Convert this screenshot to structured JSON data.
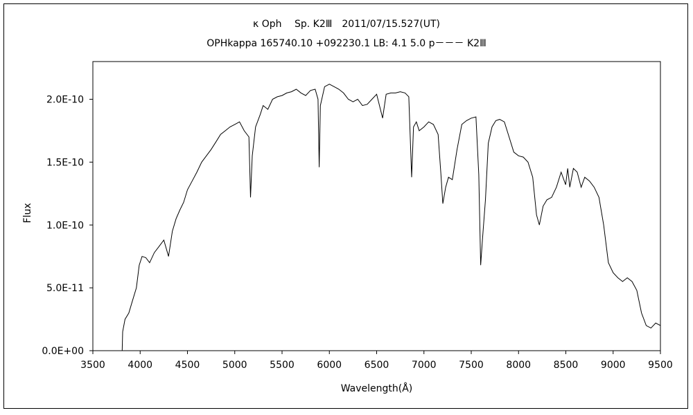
{
  "chart_data": {
    "type": "line",
    "title": "κ Oph　 Sp. K2Ⅲ　2011/07/15.527(UT)",
    "subtitle": "OPHkappa 165740.10 +092230.1 LB: 4.1 5.0 p－－－ K2Ⅲ",
    "xlabel": "Wavelength(Å)",
    "ylabel": "Flux",
    "xlim": [
      3500,
      9500
    ],
    "ylim": [
      0,
      2.3e-10
    ],
    "x_ticks": [
      3500,
      4000,
      4500,
      5000,
      5500,
      6000,
      6500,
      7000,
      7500,
      8000,
      8500,
      9000,
      9500
    ],
    "x_tick_labels": [
      "3500",
      "4000",
      "4500",
      "5000",
      "5500",
      "6000",
      "6500",
      "7000",
      "7500",
      "8000",
      "8500",
      "9000",
      "9500"
    ],
    "y_ticks": [
      0,
      5e-11,
      1e-10,
      1.5e-10,
      2e-10
    ],
    "y_tick_labels": [
      "0.0E+00",
      "5.0E-11",
      "1.0E-10",
      "1.5E-10",
      "2.0E-10"
    ],
    "grid": false,
    "legend": "none",
    "series": [
      {
        "line_color": "#000000",
        "points": [
          [
            3810,
            0.0
          ],
          [
            3815,
            1.5e-11
          ],
          [
            3840,
            2.5e-11
          ],
          [
            3880,
            3e-11
          ],
          [
            3920,
            4e-11
          ],
          [
            3960,
            5e-11
          ],
          [
            3990,
            6.8e-11
          ],
          [
            4020,
            7.5e-11
          ],
          [
            4060,
            7.4e-11
          ],
          [
            4100,
            7e-11
          ],
          [
            4150,
            7.8e-11
          ],
          [
            4200,
            8.3e-11
          ],
          [
            4250,
            8.8e-11
          ],
          [
            4300,
            7.5e-11
          ],
          [
            4340,
            9.5e-11
          ],
          [
            4380,
            1.05e-10
          ],
          [
            4420,
            1.12e-10
          ],
          [
            4460,
            1.18e-10
          ],
          [
            4500,
            1.28e-10
          ],
          [
            4550,
            1.35e-10
          ],
          [
            4600,
            1.42e-10
          ],
          [
            4650,
            1.5e-10
          ],
          [
            4700,
            1.55e-10
          ],
          [
            4750,
            1.6e-10
          ],
          [
            4800,
            1.66e-10
          ],
          [
            4850,
            1.72e-10
          ],
          [
            4900,
            1.75e-10
          ],
          [
            4950,
            1.78e-10
          ],
          [
            5000,
            1.8e-10
          ],
          [
            5050,
            1.82e-10
          ],
          [
            5100,
            1.75e-10
          ],
          [
            5150,
            1.7e-10
          ],
          [
            5167,
            1.22e-10
          ],
          [
            5185,
            1.55e-10
          ],
          [
            5220,
            1.78e-10
          ],
          [
            5270,
            1.88e-10
          ],
          [
            5300,
            1.95e-10
          ],
          [
            5350,
            1.92e-10
          ],
          [
            5400,
            2e-10
          ],
          [
            5450,
            2.02e-10
          ],
          [
            5500,
            2.03e-10
          ],
          [
            5550,
            2.05e-10
          ],
          [
            5600,
            2.06e-10
          ],
          [
            5650,
            2.08e-10
          ],
          [
            5700,
            2.05e-10
          ],
          [
            5750,
            2.03e-10
          ],
          [
            5800,
            2.07e-10
          ],
          [
            5850,
            2.08e-10
          ],
          [
            5880,
            2e-10
          ],
          [
            5893,
            1.46e-10
          ],
          [
            5905,
            1.95e-10
          ],
          [
            5950,
            2.1e-10
          ],
          [
            6000,
            2.12e-10
          ],
          [
            6050,
            2.1e-10
          ],
          [
            6100,
            2.08e-10
          ],
          [
            6150,
            2.05e-10
          ],
          [
            6200,
            2e-10
          ],
          [
            6250,
            1.98e-10
          ],
          [
            6300,
            2e-10
          ],
          [
            6350,
            1.95e-10
          ],
          [
            6400,
            1.96e-10
          ],
          [
            6450,
            2e-10
          ],
          [
            6500,
            2.04e-10
          ],
          [
            6563,
            1.85e-10
          ],
          [
            6600,
            2.04e-10
          ],
          [
            6650,
            2.05e-10
          ],
          [
            6700,
            2.05e-10
          ],
          [
            6750,
            2.06e-10
          ],
          [
            6800,
            2.05e-10
          ],
          [
            6840,
            2.02e-10
          ],
          [
            6870,
            1.38e-10
          ],
          [
            6890,
            1.78e-10
          ],
          [
            6920,
            1.82e-10
          ],
          [
            6950,
            1.75e-10
          ],
          [
            7000,
            1.78e-10
          ],
          [
            7050,
            1.82e-10
          ],
          [
            7100,
            1.8e-10
          ],
          [
            7150,
            1.72e-10
          ],
          [
            7180,
            1.4e-10
          ],
          [
            7200,
            1.17e-10
          ],
          [
            7230,
            1.3e-10
          ],
          [
            7260,
            1.38e-10
          ],
          [
            7300,
            1.36e-10
          ],
          [
            7350,
            1.6e-10
          ],
          [
            7400,
            1.8e-10
          ],
          [
            7450,
            1.83e-10
          ],
          [
            7500,
            1.85e-10
          ],
          [
            7550,
            1.86e-10
          ],
          [
            7580,
            1.4e-10
          ],
          [
            7600,
            6.8e-11
          ],
          [
            7620,
            9e-11
          ],
          [
            7650,
            1.2e-10
          ],
          [
            7680,
            1.65e-10
          ],
          [
            7720,
            1.78e-10
          ],
          [
            7760,
            1.83e-10
          ],
          [
            7800,
            1.84e-10
          ],
          [
            7850,
            1.82e-10
          ],
          [
            7900,
            1.7e-10
          ],
          [
            7950,
            1.58e-10
          ],
          [
            8000,
            1.55e-10
          ],
          [
            8050,
            1.54e-10
          ],
          [
            8100,
            1.5e-10
          ],
          [
            8150,
            1.38e-10
          ],
          [
            8190,
            1.08e-10
          ],
          [
            8220,
            1e-10
          ],
          [
            8260,
            1.15e-10
          ],
          [
            8300,
            1.2e-10
          ],
          [
            8350,
            1.22e-10
          ],
          [
            8400,
            1.3e-10
          ],
          [
            8450,
            1.42e-10
          ],
          [
            8498,
            1.32e-10
          ],
          [
            8520,
            1.45e-10
          ],
          [
            8542,
            1.3e-10
          ],
          [
            8580,
            1.45e-10
          ],
          [
            8620,
            1.42e-10
          ],
          [
            8662,
            1.3e-10
          ],
          [
            8700,
            1.38e-10
          ],
          [
            8750,
            1.35e-10
          ],
          [
            8800,
            1.3e-10
          ],
          [
            8850,
            1.22e-10
          ],
          [
            8900,
            1e-10
          ],
          [
            8950,
            7e-11
          ],
          [
            9000,
            6.2e-11
          ],
          [
            9050,
            5.8e-11
          ],
          [
            9100,
            5.5e-11
          ],
          [
            9150,
            5.8e-11
          ],
          [
            9200,
            5.5e-11
          ],
          [
            9250,
            4.8e-11
          ],
          [
            9300,
            3e-11
          ],
          [
            9350,
            2e-11
          ],
          [
            9400,
            1.8e-11
          ],
          [
            9450,
            2.2e-11
          ],
          [
            9500,
            2e-11
          ]
        ]
      }
    ]
  }
}
